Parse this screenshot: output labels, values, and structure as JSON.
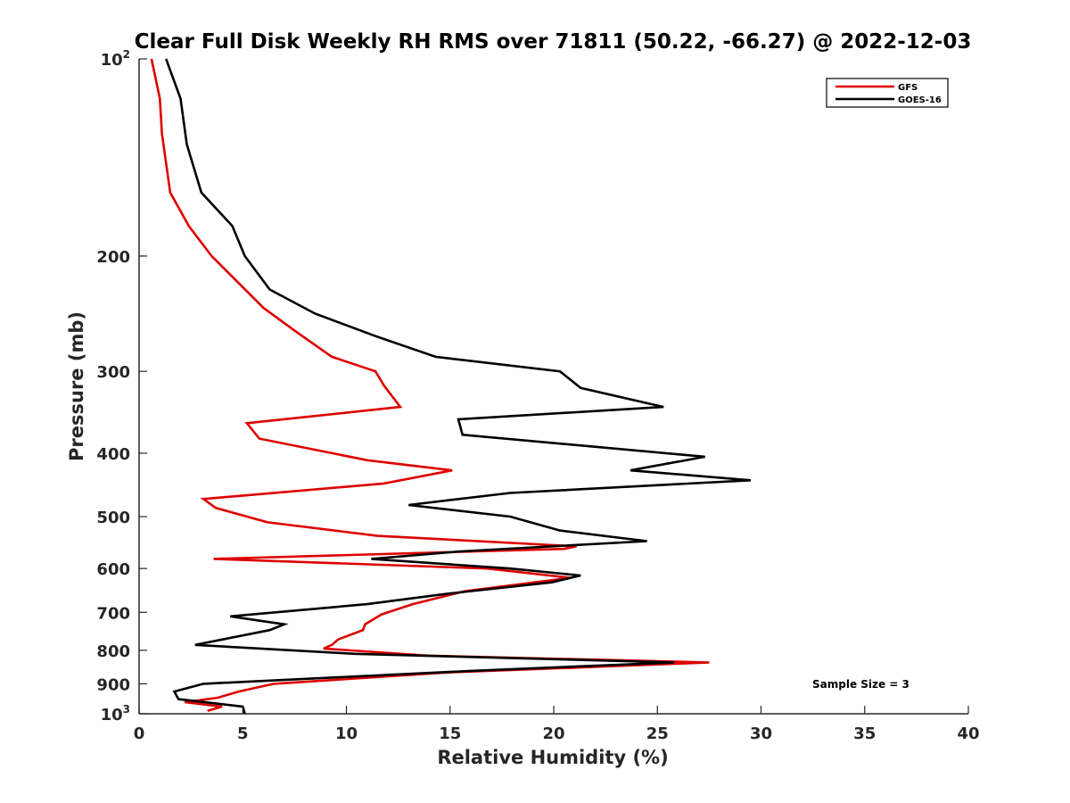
{
  "chart_data": {
    "type": "line",
    "title": "Clear Full Disk Weekly RH RMS over 71811 (50.22, -66.27) @ 2022-12-03",
    "xlabel": "Relative Humidity (%)",
    "ylabel": "Pressure (mb)",
    "xlim": [
      0,
      40
    ],
    "ylim": [
      100,
      1000
    ],
    "y_scale": "log",
    "y_reversed": true,
    "x_ticks": [
      0,
      5,
      10,
      15,
      20,
      25,
      30,
      35,
      40
    ],
    "y_ticks": [
      {
        "value": 100,
        "label": "10",
        "sup": "2"
      },
      {
        "value": 200,
        "label": "200",
        "sup": ""
      },
      {
        "value": 300,
        "label": "300",
        "sup": ""
      },
      {
        "value": 400,
        "label": "400",
        "sup": ""
      },
      {
        "value": 500,
        "label": "500",
        "sup": ""
      },
      {
        "value": 600,
        "label": "600",
        "sup": ""
      },
      {
        "value": 700,
        "label": "700",
        "sup": ""
      },
      {
        "value": 800,
        "label": "800",
        "sup": ""
      },
      {
        "value": 900,
        "label": "900",
        "sup": ""
      },
      {
        "value": 1000,
        "label": "10",
        "sup": "3"
      }
    ],
    "grid": false,
    "legend_position": "top-right",
    "annotation": "Sample Size = 3",
    "series": [
      {
        "name": "GFS",
        "color": "#dd0000",
        "points": [
          [
            0.6,
            100
          ],
          [
            1.0,
            115
          ],
          [
            1.1,
            130
          ],
          [
            1.5,
            160
          ],
          [
            2.4,
            180
          ],
          [
            3.5,
            200
          ],
          [
            6.0,
            240
          ],
          [
            7.5,
            260
          ],
          [
            9.3,
            285
          ],
          [
            11.4,
            300
          ],
          [
            11.8,
            315
          ],
          [
            12.6,
            340
          ],
          [
            5.2,
            360
          ],
          [
            5.8,
            380
          ],
          [
            11.0,
            410
          ],
          [
            15.1,
            425
          ],
          [
            11.8,
            445
          ],
          [
            3.1,
            470
          ],
          [
            3.7,
            485
          ],
          [
            6.2,
            510
          ],
          [
            11.5,
            535
          ],
          [
            21.1,
            555
          ],
          [
            20.5,
            560
          ],
          [
            3.6,
            580
          ],
          [
            16.8,
            600
          ],
          [
            20.8,
            620
          ],
          [
            15.7,
            650
          ],
          [
            13.2,
            680
          ],
          [
            11.7,
            705
          ],
          [
            10.9,
            730
          ],
          [
            10.8,
            745
          ],
          [
            9.6,
            770
          ],
          [
            9.3,
            785
          ],
          [
            8.9,
            795
          ],
          [
            13.9,
            815
          ],
          [
            27.5,
            835
          ],
          [
            14.8,
            865
          ],
          [
            6.5,
            900
          ],
          [
            4.8,
            925
          ],
          [
            3.8,
            945
          ],
          [
            2.2,
            960
          ],
          [
            4.0,
            975
          ],
          [
            3.3,
            990
          ]
        ]
      },
      {
        "name": "GOES-16",
        "color": "#000000",
        "points": [
          [
            1.3,
            100
          ],
          [
            2.0,
            115
          ],
          [
            2.3,
            135
          ],
          [
            3.0,
            160
          ],
          [
            4.5,
            180
          ],
          [
            5.1,
            200
          ],
          [
            6.3,
            225
          ],
          [
            8.5,
            245
          ],
          [
            11.4,
            265
          ],
          [
            14.3,
            285
          ],
          [
            20.3,
            300
          ],
          [
            21.3,
            318
          ],
          [
            25.3,
            340
          ],
          [
            15.4,
            355
          ],
          [
            15.6,
            375
          ],
          [
            27.3,
            405
          ],
          [
            23.7,
            425
          ],
          [
            29.5,
            440
          ],
          [
            17.9,
            460
          ],
          [
            13.0,
            480
          ],
          [
            17.9,
            500
          ],
          [
            20.3,
            525
          ],
          [
            24.5,
            545
          ],
          [
            15.5,
            565
          ],
          [
            11.2,
            580
          ],
          [
            17.9,
            600
          ],
          [
            21.3,
            615
          ],
          [
            19.9,
            630
          ],
          [
            15.0,
            655
          ],
          [
            11.0,
            680
          ],
          [
            4.4,
            710
          ],
          [
            7.0,
            730
          ],
          [
            6.3,
            745
          ],
          [
            2.7,
            785
          ],
          [
            10.4,
            810
          ],
          [
            25.8,
            835
          ],
          [
            16.0,
            860
          ],
          [
            3.1,
            900
          ],
          [
            1.7,
            925
          ],
          [
            1.9,
            950
          ],
          [
            5.0,
            975
          ],
          [
            5.1,
            1000
          ]
        ]
      }
    ]
  }
}
